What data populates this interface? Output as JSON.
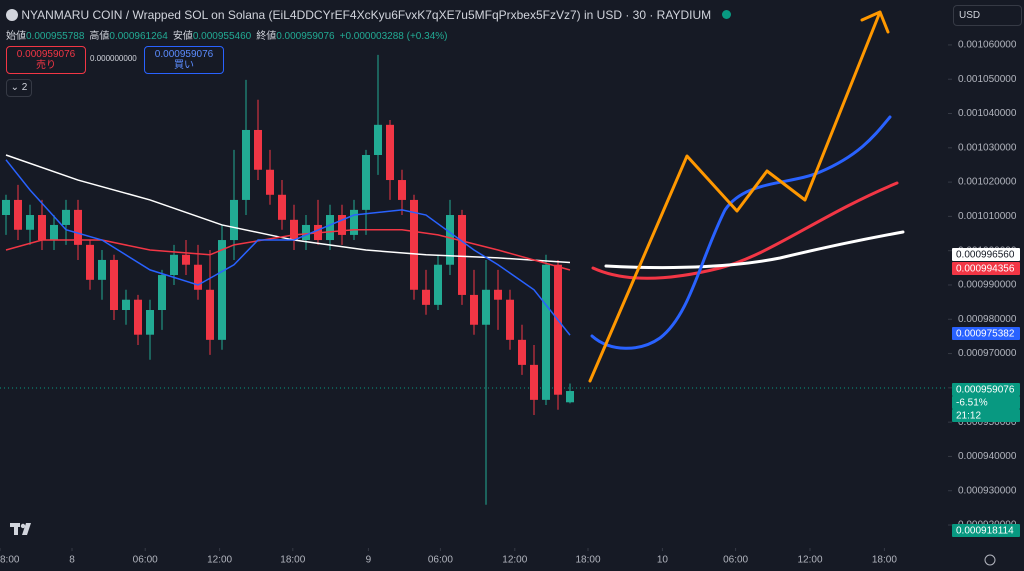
{
  "header": {
    "title": "NYANMARU COIN / Wrapped SOL on Solana (EiL4DDCYrEF4XcKyu6FvxK7qXE7u5MFqPrxbex5FzVz7) in USD · 30 · RAYDIUM",
    "ohlc": [
      {
        "label": "始値",
        "value": "0.000955788"
      },
      {
        "label": "高値",
        "value": "0.000961264"
      },
      {
        "label": "安値",
        "value": "0.000955460"
      },
      {
        "label": "終値",
        "value": "0.000959076"
      }
    ],
    "change": "+0.000003288 (+0.34%)",
    "sell": {
      "price": "0.000959076",
      "label": "売り"
    },
    "spread": "0.000000000",
    "buy": {
      "price": "0.000959076",
      "label": "買い"
    },
    "indicators": "2",
    "currency": "USD"
  },
  "price_labels": [
    {
      "text": "0.000996560",
      "color": "#131722",
      "bg": "#ffffff"
    },
    {
      "text": "0.000994356",
      "color": "#ffffff",
      "bg": "#f23645"
    },
    {
      "text": "0.000975382",
      "color": "#ffffff",
      "bg": "#2962ff"
    },
    {
      "text": "0.000959076",
      "color": "#ffffff",
      "bg": "#089981"
    },
    {
      "text": "-6.51%",
      "color": "#ffffff",
      "bg": "#089981"
    },
    {
      "text": "21:12",
      "color": "#ffffff",
      "bg": "#089981"
    },
    {
      "text": "0.000918114",
      "color": "#ffffff",
      "bg": "#089981"
    }
  ],
  "chart_data": {
    "type": "candlestick",
    "up_color": "#22ab94",
    "down_color": "#f23645",
    "open": [
      0.0010104,
      0.0010148,
      0.0010061,
      0.0010104,
      0.0010031,
      0.0010075,
      0.0010119,
      0.0010017,
      0.0009915,
      0.0009973,
      0.0009827,
      0.0009857,
      0.0009755,
      0.0009827,
      0.0009929,
      0.0009988,
      0.0009959,
      0.0009886,
      0.000974,
      0.0010031,
      0.0010148,
      0.0010352,
      0.0010236,
      0.0010163,
      0.001009,
      0.0010031,
      0.0010075,
      0.0010031,
      0.0010104,
      0.0010046,
      0.0010119,
      0.0010279,
      0.0010367,
      0.0010206,
      0.0010148,
      0.0009886,
      0.0009842,
      0.0009959,
      0.0010104,
      0.0009871,
      0.0009784,
      0.0009886,
      0.0009857,
      0.000974,
      0.0009667,
      0.0009565,
      0.0009959,
      0.000955788
    ],
    "high": [
      0.0010163,
      0.0010192,
      0.0010134,
      0.0010148,
      0.0010104,
      0.0010148,
      0.0010148,
      0.0010031,
      0.0010002,
      0.0009988,
      0.0009886,
      0.0009871,
      0.0009857,
      0.0009944,
      0.0010017,
      0.0010031,
      0.0010017,
      0.0010002,
      0.0010075,
      0.0010294,
      0.0010498,
      0.001044,
      0.0010294,
      0.0010206,
      0.0010134,
      0.0010104,
      0.0010148,
      0.0010134,
      0.0010134,
      0.0010148,
      0.0010294,
      0.0010571,
      0.0010381,
      0.0010236,
      0.0010163,
      0.0009944,
      0.0009988,
      0.0010148,
      0.0010119,
      0.0009944,
      0.0009973,
      0.0009944,
      0.0009886,
      0.0009784,
      0.0009725,
      0.0009988,
      0.0009973,
      0.000961264
    ],
    "low": [
      0.0010046,
      0.0010031,
      0.0010017,
      0.0010002,
      0.0010002,
      0.0010017,
      0.0009973,
      0.0009886,
      0.0009857,
      0.0009798,
      0.0009784,
      0.0009725,
      0.0009682,
      0.0009769,
      0.00099,
      0.0009929,
      0.0009857,
      0.0009696,
      0.0009711,
      0.0009973,
      0.0010104,
      0.0010206,
      0.0010134,
      0.0010061,
      0.0010002,
      0.0010002,
      0.0010017,
      0.0010002,
      0.0010017,
      0.0010031,
      0.0010046,
      0.0010221,
      0.0010148,
      0.0010104,
      0.0009857,
      0.0009813,
      0.0009827,
      0.0009929,
      0.0009842,
      0.0009755,
      0.0009259,
      0.0009769,
      0.0009711,
      0.0009638,
      0.0009521,
      0.000955,
      0.0009536,
      0.00095546
    ],
    "close": [
      0.0010148,
      0.0010061,
      0.0010104,
      0.0010031,
      0.0010075,
      0.0010119,
      0.0010017,
      0.0009915,
      0.0009973,
      0.0009827,
      0.0009857,
      0.0009755,
      0.0009827,
      0.0009929,
      0.0009988,
      0.0009959,
      0.0009886,
      0.000974,
      0.0010031,
      0.0010148,
      0.0010352,
      0.0010236,
      0.0010163,
      0.001009,
      0.0010031,
      0.0010075,
      0.0010031,
      0.0010104,
      0.0010046,
      0.0010119,
      0.0010279,
      0.0010367,
      0.0010206,
      0.0010148,
      0.0009886,
      0.0009842,
      0.0009959,
      0.0010104,
      0.0009871,
      0.0009784,
      0.0009886,
      0.0009857,
      0.000974,
      0.0009667,
      0.0009565,
      0.0009959,
      0.000958,
      0.000959076
    ],
    "series": [
      {
        "color": "#ffffff",
        "x": [
          0,
          6,
          12,
          18,
          24,
          30,
          35,
          41,
          47
        ],
        "values": [
          0.0010279,
          0.0010206,
          0.0010148,
          0.0010075,
          0.0010031,
          0.0010002,
          0.0009988,
          0.0009979,
          0.00099656
        ]
      },
      {
        "color": "#f23645",
        "x": [
          0,
          3,
          8,
          12,
          17,
          19,
          24,
          29,
          33,
          36,
          41,
          47
        ],
        "values": [
          0.0010002,
          0.0010031,
          0.0010031,
          0.0010002,
          0.0009988,
          0.0010017,
          0.0010046,
          0.0010061,
          0.0010061,
          0.0010046,
          0.0010002,
          0.00099436
        ]
      },
      {
        "color": "#2962ff",
        "x": [
          0,
          2,
          5,
          8,
          12,
          16,
          19,
          21,
          24,
          29,
          33,
          35,
          39,
          41,
          44,
          47
        ],
        "values": [
          0.0010265,
          0.0010177,
          0.0010061,
          0.0010031,
          0.0009944,
          0.00099,
          0.0009959,
          0.0010031,
          0.0010031,
          0.0010104,
          0.0010119,
          0.0010104,
          0.0010002,
          0.0009959,
          0.0009886,
          0.00097538
        ]
      }
    ],
    "xlim": [
      -0.5,
      78.5
    ],
    "xticks": [
      {
        "value": -0.5,
        "label": "8:00"
      },
      {
        "value": 5.5,
        "label": "8"
      },
      {
        "value": 11.6,
        "label": "06:00"
      },
      {
        "value": 17.8,
        "label": "12:00"
      },
      {
        "value": 23.9,
        "label": "18:00"
      },
      {
        "value": 30.2,
        "label": "9"
      },
      {
        "value": 36.2,
        "label": "06:00"
      },
      {
        "value": 42.4,
        "label": "12:00"
      },
      {
        "value": 48.5,
        "label": "18:00"
      },
      {
        "value": 54.7,
        "label": "10"
      },
      {
        "value": 60.8,
        "label": "06:00"
      },
      {
        "value": 67,
        "label": "12:00"
      },
      {
        "value": 73.2,
        "label": "18:00"
      }
    ],
    "ylim": [
      0.0009133,
      0.0010731
    ],
    "yticks": [
      {
        "value": 0.00092,
        "label": "0.000920000"
      },
      {
        "value": 0.00093,
        "label": "0.000930000"
      },
      {
        "value": 0.00094,
        "label": "0.000940000"
      },
      {
        "value": 0.00095,
        "label": "0.000950000"
      },
      {
        "value": 0.00096,
        "label": "0.000960000"
      },
      {
        "value": 0.00097,
        "label": "0.000970000"
      },
      {
        "value": 0.00098,
        "label": "0.000980000"
      },
      {
        "value": 0.00099,
        "label": "0.000990000"
      },
      {
        "value": 0.001,
        "label": "0.001000000"
      },
      {
        "value": 0.00101,
        "label": "0.001010000"
      },
      {
        "value": 0.00102,
        "label": "0.001020000"
      },
      {
        "value": 0.00103,
        "label": "0.001030000"
      },
      {
        "value": 0.00104,
        "label": "0.001040000"
      },
      {
        "value": 0.00105,
        "label": "0.001050000"
      },
      {
        "value": 0.00106,
        "label": "0.001060000"
      }
    ],
    "grid": false
  }
}
